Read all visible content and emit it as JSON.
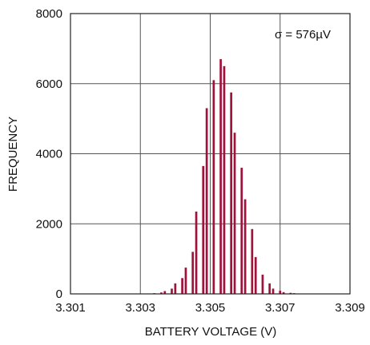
{
  "chart_data": {
    "type": "bar",
    "title": "",
    "xlabel": "BATTERY VOLTAGE (V)",
    "ylabel": "FREQUENCY",
    "xlim": [
      3.301,
      3.309
    ],
    "ylim": [
      0,
      8000
    ],
    "x_ticks": [
      "3.301",
      "3.303",
      "3.305",
      "3.307",
      "3.309"
    ],
    "y_ticks": [
      "0",
      "2000",
      "4000",
      "6000",
      "8000"
    ],
    "grid": true,
    "annotation": "σ = 576µV",
    "bar_color": "#a0123a",
    "x": [
      3.3033,
      3.3034,
      3.3036,
      3.3037,
      3.3039,
      3.304,
      3.3042,
      3.3043,
      3.3045,
      3.3046,
      3.3048,
      3.3049,
      3.3051,
      3.3053,
      3.3054,
      3.3056,
      3.3057,
      3.3059,
      3.306,
      3.3062,
      3.3063,
      3.3065,
      3.3067,
      3.3068,
      3.307,
      3.3071,
      3.3073,
      3.3074,
      3.3076,
      3.3077,
      3.3079,
      3.3081,
      3.3082
    ],
    "values": [
      10,
      20,
      40,
      80,
      150,
      300,
      450,
      750,
      1200,
      2350,
      3650,
      5300,
      6100,
      6700,
      6500,
      5750,
      4600,
      3600,
      2700,
      1850,
      1050,
      550,
      300,
      150,
      90,
      50,
      30,
      20,
      10,
      10,
      5,
      5,
      5
    ]
  }
}
